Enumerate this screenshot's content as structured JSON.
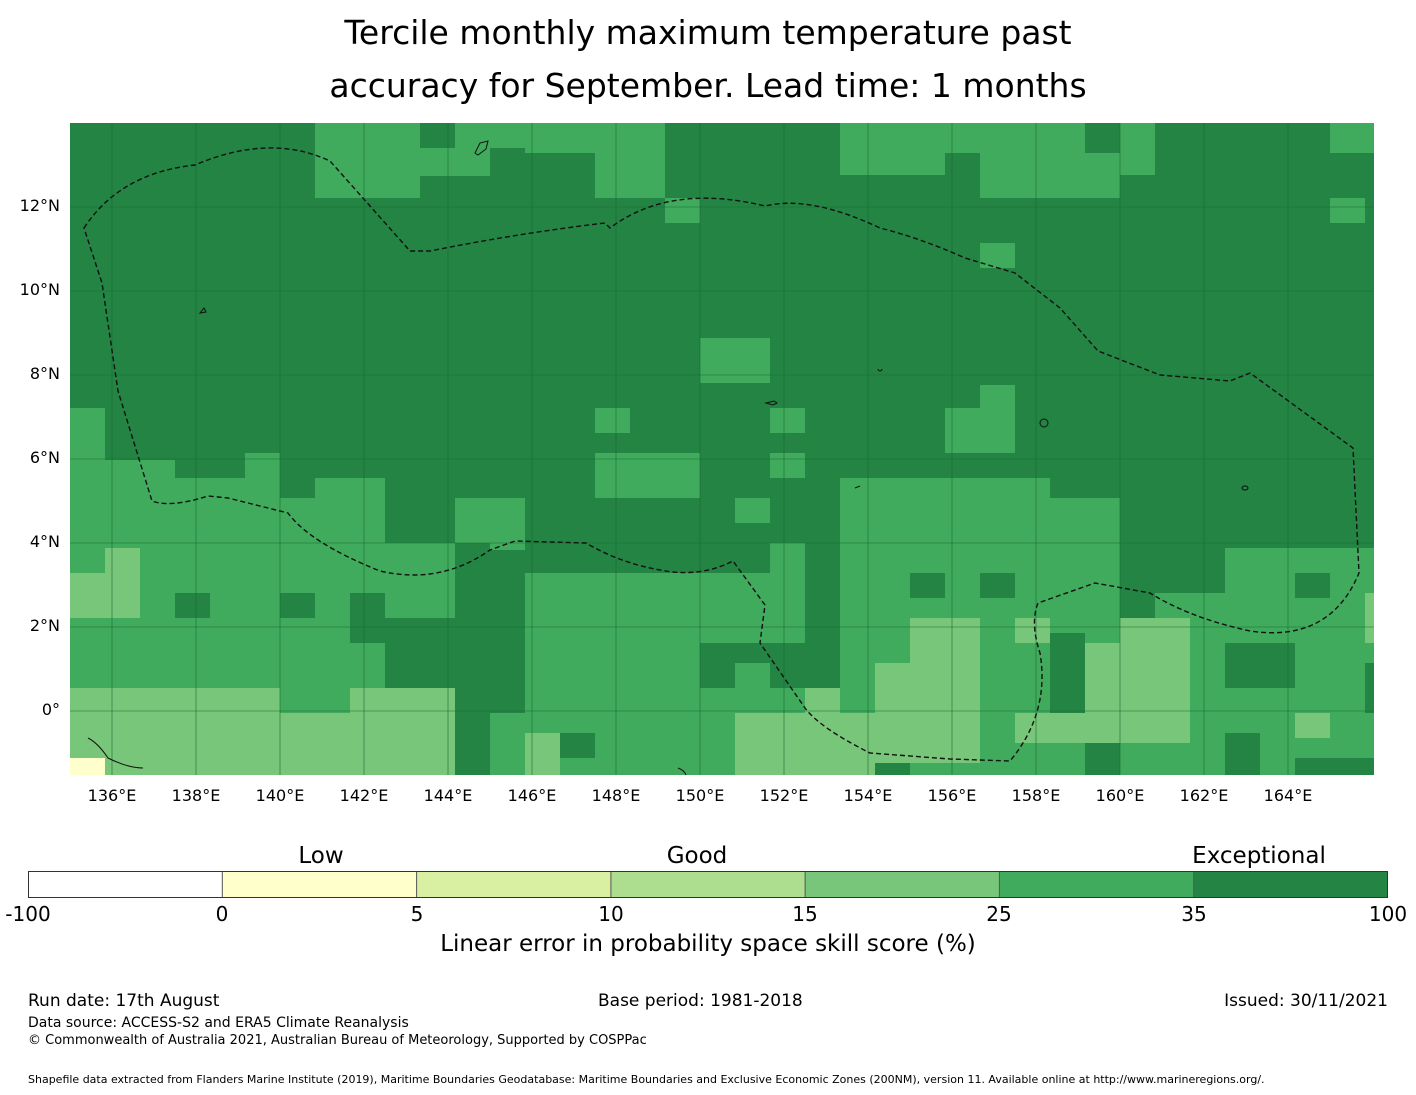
{
  "title_line1": "Tercile monthly maximum temperature past",
  "title_line2": "accuracy for September. Lead time: 1 months",
  "x_ticks": [
    "136°E",
    "138°E",
    "140°E",
    "142°E",
    "144°E",
    "146°E",
    "148°E",
    "150°E",
    "152°E",
    "154°E",
    "156°E",
    "158°E",
    "160°E",
    "162°E",
    "164°E"
  ],
  "y_ticks": [
    "12°N",
    "10°N",
    "8°N",
    "6°N",
    "4°N",
    "2°N",
    "0°"
  ],
  "map_extent": {
    "lon": [
      135,
      166
    ],
    "lat": [
      -1.5,
      14
    ]
  },
  "colorbar": {
    "categories": [
      "Low",
      "Good",
      "Exceptional"
    ],
    "ticks": [
      "-100",
      "0",
      "5",
      "10",
      "15",
      "25",
      "35",
      "100"
    ],
    "colors": [
      "#ffffff",
      "#ffffcc",
      "#d9f0a3",
      "#addd8e",
      "#78c679",
      "#41ab5d",
      "#238443"
    ],
    "label": "Linear error in probability space skill score (%)"
  },
  "footer": {
    "run_date": "Run date: 17th August",
    "base_period": "Base period: 1981-2018",
    "issued": "Issued: 30/11/2021",
    "data_source": "Data source: ACCESS-S2 and ERA5 Climate Reanalysis",
    "copyright": "© Commonwealth of Australia 2021, Australian Bureau of Meteorology, Supported by COSPPac",
    "shapefile": "Shapefile data extracted from Flanders Marine Institute (2019), Maritime Boundaries Geodatabase: Maritime Boundaries and Exclusive Economic Zones (200NM), version 11. Available online at http://www.marineregions.org/."
  }
}
